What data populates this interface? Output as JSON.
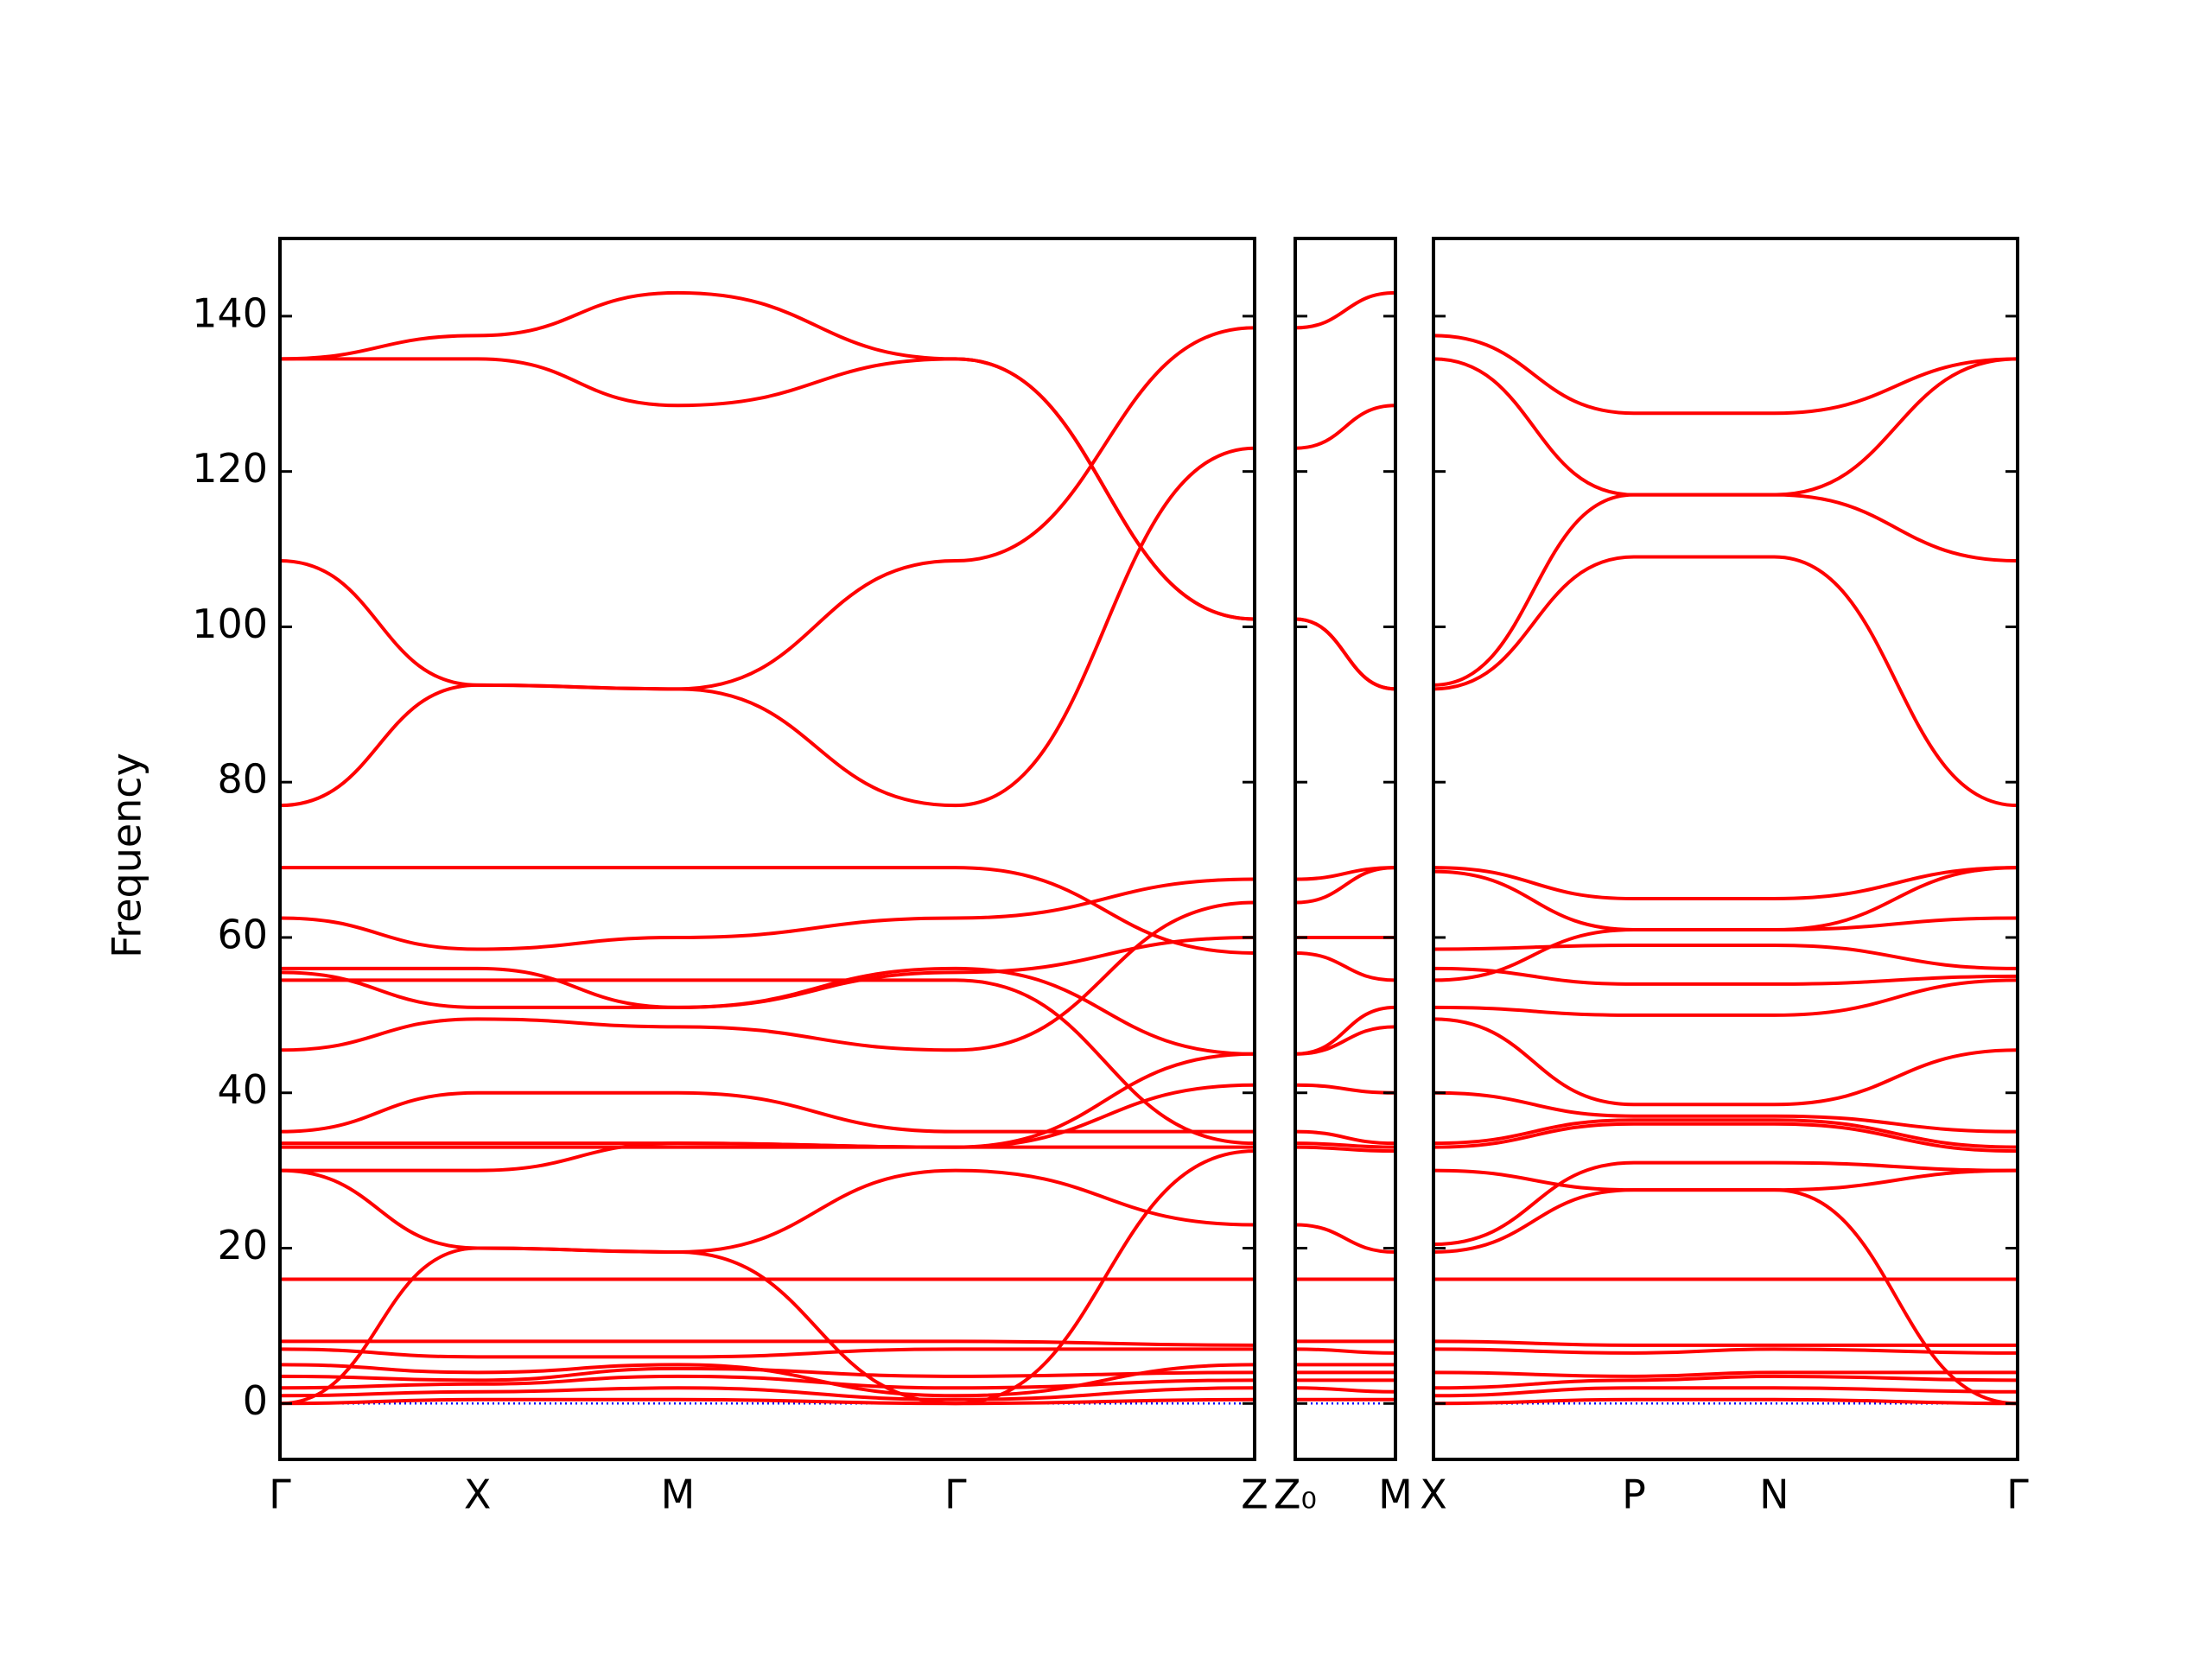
{
  "chart_data": [
    {
      "type": "line",
      "ylabel": "Frequency",
      "color": "#ff0000",
      "ylim": [
        -7.2,
        150
      ],
      "yticks": [
        0,
        20,
        40,
        60,
        80,
        100,
        120,
        140
      ],
      "ytick_labels": true,
      "xlim": [
        0,
        6.81
      ],
      "x": [
        0,
        1.38,
        2.78,
        4.72,
        6.81
      ],
      "xticks": [
        {
          "value": 0,
          "label": "Γ"
        },
        {
          "value": 1.38,
          "label": "X"
        },
        {
          "value": 2.78,
          "label": "M"
        },
        {
          "value": 4.72,
          "label": "Γ"
        },
        {
          "value": 6.81,
          "label": "Z"
        }
      ],
      "hlines": [
        0
      ],
      "hline_color": "#0000ff",
      "series": [
        {
          "values": [
            134.5,
            137.5,
            143,
            134.5,
            101
          ]
        },
        {
          "values": [
            134.5,
            134.5,
            128.5,
            134.5,
            101
          ]
        },
        {
          "values": [
            108.5,
            92.5,
            92,
            108.5,
            138.5
          ]
        },
        {
          "values": [
            77,
            92.5,
            92,
            77,
            123
          ]
        },
        {
          "values": [
            69,
            69,
            69,
            69,
            58
          ]
        },
        {
          "values": [
            62.5,
            58.5,
            60,
            62.5,
            67.5
          ]
        },
        {
          "values": [
            56,
            56,
            51,
            56,
            45
          ]
        },
        {
          "values": [
            54.5,
            54.5,
            54.5,
            54.5,
            33.5
          ]
        },
        {
          "values": [
            55.5,
            51,
            51,
            55.5,
            60
          ]
        },
        {
          "values": [
            45.5,
            49.5,
            48.5,
            45.5,
            64.5
          ]
        },
        {
          "values": [
            35,
            40,
            40,
            35,
            35
          ]
        },
        {
          "values": [
            33.5,
            33.5,
            33.5,
            33,
            45
          ]
        },
        {
          "values": [
            33,
            33,
            33,
            33,
            41
          ]
        },
        {
          "values": [
            30,
            20,
            19.5,
            30,
            23
          ]
        },
        {
          "values": [
            30,
            30,
            33.5,
            33,
            33
          ]
        },
        {
          "values": [
            16,
            16,
            16,
            16,
            16
          ]
        },
        {
          "values": [
            0,
            20,
            19.5,
            0,
            32.5
          ]
        },
        {
          "values": [
            8,
            8,
            8,
            8,
            7.5
          ]
        },
        {
          "values": [
            7,
            6,
            6,
            7,
            7
          ]
        },
        {
          "values": [
            5,
            4,
            5,
            1,
            5
          ]
        },
        {
          "values": [
            3.5,
            3,
            4.5,
            3.5,
            4
          ]
        },
        {
          "values": [
            2,
            2.5,
            3.5,
            2,
            3
          ]
        },
        {
          "values": [
            1,
            1.5,
            2,
            0.5,
            2
          ]
        },
        {
          "values": [
            0,
            0.5,
            0.5,
            0,
            0.5
          ]
        }
      ]
    },
    {
      "type": "line",
      "color": "#ff0000",
      "ylim": [
        -7.2,
        150
      ],
      "yticks": [
        0,
        20,
        40,
        60,
        80,
        100,
        120,
        140
      ],
      "xlim": [
        0,
        0.7
      ],
      "x": [
        0,
        0.7
      ],
      "xticks": [
        {
          "value": 0,
          "label": "Z₀"
        },
        {
          "value": 0.7,
          "label": "M"
        }
      ],
      "hlines": [
        0
      ],
      "hline_color": "#0000ff",
      "series": [
        {
          "values": [
            138.5,
            143
          ]
        },
        {
          "values": [
            123,
            128.5
          ]
        },
        {
          "values": [
            101,
            92
          ]
        },
        {
          "values": [
            101,
            92
          ]
        },
        {
          "values": [
            67.5,
            69
          ]
        },
        {
          "values": [
            64.5,
            69
          ]
        },
        {
          "values": [
            60,
            60
          ]
        },
        {
          "values": [
            58,
            54.5
          ]
        },
        {
          "values": [
            45,
            51
          ]
        },
        {
          "values": [
            45,
            48.5
          ]
        },
        {
          "values": [
            41,
            40
          ]
        },
        {
          "values": [
            35,
            33.5
          ]
        },
        {
          "values": [
            33.5,
            33
          ]
        },
        {
          "values": [
            33,
            32.5
          ]
        },
        {
          "values": [
            23,
            19.5
          ]
        },
        {
          "values": [
            16,
            16
          ]
        },
        {
          "values": [
            8,
            8
          ]
        },
        {
          "values": [
            7,
            6.5
          ]
        },
        {
          "values": [
            5,
            5
          ]
        },
        {
          "values": [
            4,
            4
          ]
        },
        {
          "values": [
            3,
            3
          ]
        },
        {
          "values": [
            2,
            1.5
          ]
        },
        {
          "values": [
            0.5,
            0.5
          ]
        }
      ]
    },
    {
      "type": "line",
      "color": "#ff0000",
      "ylim": [
        -7.2,
        150
      ],
      "yticks": [
        0,
        20,
        40,
        60,
        80,
        100,
        120,
        140
      ],
      "xlim": [
        0,
        4.08
      ],
      "x": [
        0,
        1.4,
        2.38,
        4.08
      ],
      "xticks": [
        {
          "value": 0,
          "label": "X"
        },
        {
          "value": 1.4,
          "label": "P"
        },
        {
          "value": 2.38,
          "label": "N"
        },
        {
          "value": 4.08,
          "label": "Γ"
        }
      ],
      "hlines": [
        0
      ],
      "hline_color": "#0000ff",
      "series": [
        {
          "values": [
            137.5,
            127.5,
            127.5,
            134.5
          ]
        },
        {
          "values": [
            134.5,
            117,
            117,
            134.5
          ]
        },
        {
          "values": [
            92.5,
            117,
            117,
            108.5
          ]
        },
        {
          "values": [
            92,
            109,
            109,
            77
          ]
        },
        {
          "values": [
            69,
            65,
            65,
            69
          ]
        },
        {
          "values": [
            68.5,
            61,
            61,
            62.5
          ]
        },
        {
          "values": [
            58.5,
            59,
            59,
            56
          ]
        },
        {
          "values": [
            56,
            54,
            54,
            55
          ]
        },
        {
          "values": [
            54.5,
            61,
            61,
            69
          ]
        },
        {
          "values": [
            51,
            50,
            50,
            54.5
          ]
        },
        {
          "values": [
            49.5,
            38.5,
            38.5,
            45.5
          ]
        },
        {
          "values": [
            40,
            37,
            37,
            35
          ]
        },
        {
          "values": [
            33.5,
            36.5,
            36.5,
            33
          ]
        },
        {
          "values": [
            33,
            36,
            36,
            32.5
          ]
        },
        {
          "values": [
            30,
            27.5,
            27.5,
            30
          ]
        },
        {
          "values": [
            20.5,
            31,
            31,
            30
          ]
        },
        {
          "values": [
            19.5,
            27.5,
            27.5,
            0
          ]
        },
        {
          "values": [
            16,
            16,
            16,
            16
          ]
        },
        {
          "values": [
            8,
            7.5,
            7.5,
            7.5
          ]
        },
        {
          "values": [
            7,
            6.5,
            7,
            6.5
          ]
        },
        {
          "values": [
            4,
            3.5,
            4,
            4
          ]
        },
        {
          "values": [
            2,
            3,
            3.5,
            3
          ]
        },
        {
          "values": [
            1,
            2,
            2,
            1.5
          ]
        },
        {
          "values": [
            0,
            0.5,
            0.5,
            0
          ]
        }
      ]
    }
  ]
}
